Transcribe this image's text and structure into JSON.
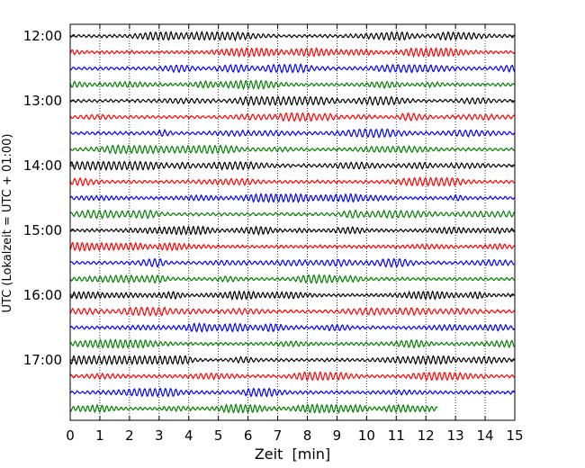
{
  "chart_data": {
    "type": "line",
    "xlabel": "Zeit  [min]",
    "ylabel": "UTC (Lokalzeit = UTC + 01:00)",
    "xlim": [
      0,
      15
    ],
    "x_ticks": [
      "0",
      "1",
      "2",
      "3",
      "4",
      "5",
      "6",
      "7",
      "8",
      "9",
      "10",
      "11",
      "12",
      "13",
      "14",
      "15"
    ],
    "y_tick_labels": [
      "12:00",
      "13:00",
      "14:00",
      "15:00",
      "16:00",
      "17:00"
    ],
    "x_grid": "dotted vertical lines at each minute",
    "trace_interval_minutes": 15,
    "trace_start": "12:00",
    "trace_count": 24,
    "last_trace_end_minute": 12.4,
    "trace_colors": [
      "#000000",
      "#ff0000",
      "#0000ff",
      "#008000"
    ],
    "event": {
      "trace_start": "17:00",
      "x_range_minutes": [
        0.7,
        3.9
      ],
      "relative_amplitude": 2.4
    }
  }
}
